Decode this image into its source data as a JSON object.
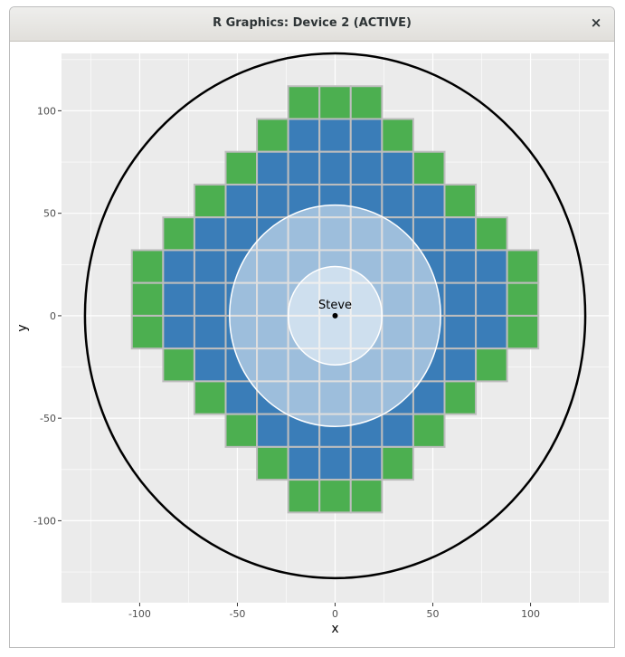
{
  "window": {
    "title": "R Graphics: Device 2 (ACTIVE)",
    "close_label": "×"
  },
  "colors": {
    "panel_bg": "#ebebeb",
    "grid_major": "#ffffff",
    "tile_blue": "#3a7db8",
    "tile_green": "#4caf50",
    "tile_border": "#bdbdbd",
    "big_circle": "#000000",
    "inner_circle_fill": "#ffffff",
    "axis_text": "#4d4d4d"
  },
  "chart_data": {
    "type": "scatter",
    "xlabel": "x",
    "ylabel": "y",
    "xlim": [
      -140,
      140
    ],
    "ylim": [
      -140,
      128
    ],
    "x_ticks": [
      -100,
      -50,
      0,
      50,
      100
    ],
    "y_ticks": [
      100,
      50,
      0,
      -50,
      -100
    ],
    "x_tick_labels": [
      "-100",
      "-50",
      "0",
      "50",
      "100"
    ],
    "y_tick_labels": [
      "100",
      "50",
      "0",
      "-50",
      "-100"
    ],
    "grid": true,
    "tile_size": 16,
    "tiles": {
      "rows": [
        {
          "y": 104,
          "x_min": -16,
          "x_max": 16,
          "edge": "green_all"
        },
        {
          "y": 88,
          "x_min": -32,
          "x_max": 32
        },
        {
          "y": 72,
          "x_min": -48,
          "x_max": 48
        },
        {
          "y": 56,
          "x_min": -64,
          "x_max": 64
        },
        {
          "y": 40,
          "x_min": -80,
          "x_max": 80
        },
        {
          "y": 24,
          "x_min": -96,
          "x_max": 96
        },
        {
          "y": 8,
          "x_min": -96,
          "x_max": 96
        },
        {
          "y": -8,
          "x_min": -96,
          "x_max": 96
        },
        {
          "y": -24,
          "x_min": -80,
          "x_max": 80
        },
        {
          "y": -40,
          "x_min": -64,
          "x_max": 64
        },
        {
          "y": -56,
          "x_min": -48,
          "x_max": 48
        },
        {
          "y": -72,
          "x_min": -32,
          "x_max": 32
        },
        {
          "y": -88,
          "x_min": -16,
          "x_max": 16,
          "edge": "green_all"
        }
      ]
    },
    "circles": [
      {
        "name": "outer",
        "cx": 0,
        "cy": 0,
        "r": 128
      },
      {
        "name": "middle",
        "cx": 0,
        "cy": 0,
        "r": 54
      },
      {
        "name": "inner",
        "cx": 0,
        "cy": 0,
        "r": 24
      }
    ],
    "point": {
      "x": 0,
      "y": 0,
      "label": "Steve"
    }
  }
}
